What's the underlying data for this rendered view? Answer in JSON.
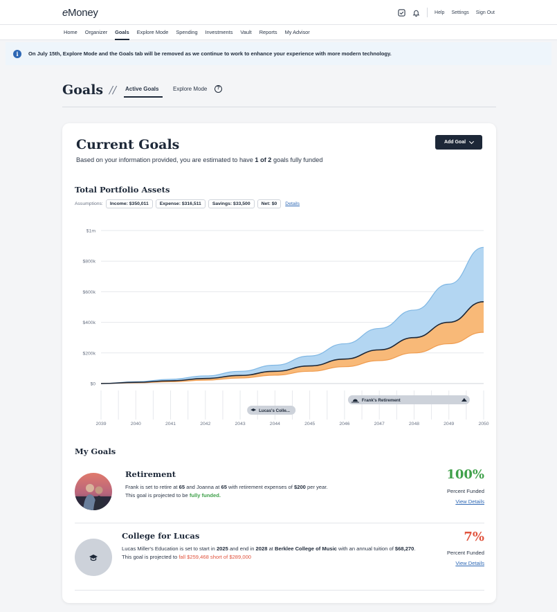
{
  "app": {
    "logo": "eMoney"
  },
  "topbar": {
    "help": "Help",
    "settings": "Settings",
    "signout": "Sign Out"
  },
  "nav": [
    "Home",
    "Organizer",
    "Goals",
    "Explore Mode",
    "Spending",
    "Investments",
    "Vault",
    "Reports",
    "My Advisor"
  ],
  "nav_active": "Goals",
  "banner": {
    "text": "On July 15th, Explore Mode and the Goals tab will be removed as we continue to work to enhance your experience with more modern technology."
  },
  "goals_header": {
    "title": "Goals",
    "separator": "//",
    "tab_active": "Active Goals",
    "tab_explore": "Explore Mode"
  },
  "current_goals": {
    "title": "Current Goals",
    "subtitle_pre": "Based on your information provided, you are estimated to have ",
    "subtitle_bold": "1 of 2",
    "subtitle_post": " goals fully funded",
    "add_goal": "Add Goal"
  },
  "portfolio": {
    "title": "Total Portfolio Assets",
    "assumptions_label": "Assumptions:",
    "income": "Income: $350,011",
    "expense": "Expense: $316,511",
    "savings": "Savings: $33,500",
    "net": "Net: $0",
    "details": "Details"
  },
  "chart_data": {
    "type": "area",
    "y_ticks": [
      "$0",
      "$200k",
      "$400k",
      "$600k",
      "$800k",
      "$1m"
    ],
    "ylim": [
      0,
      1000000
    ],
    "x": [
      "2039",
      "2040",
      "2041",
      "2042",
      "2043",
      "2044",
      "2045",
      "2046",
      "2047",
      "2048",
      "2049",
      "2050"
    ],
    "xlim": [
      2039,
      2050
    ],
    "series": [
      {
        "values": [
          0,
          12000,
          28000,
          50000,
          80000,
          120000,
          180000,
          260000,
          360000,
          480000,
          650000,
          890000
        ],
        "color": "#b3d6f2"
      },
      {
        "values": [
          0,
          8000,
          18000,
          33000,
          53000,
          80000,
          115000,
          160000,
          220000,
          300000,
          400000,
          535000
        ],
        "color": "#1d2838"
      },
      {
        "values": [
          0,
          5000,
          12000,
          22000,
          36000,
          55000,
          80000,
          110000,
          150000,
          200000,
          260000,
          335000
        ],
        "color": "#f8b978"
      }
    ],
    "markers": [
      {
        "label": "Lucas's Colle...",
        "start": 2043.2
      },
      {
        "label": "Frank's Retirement",
        "start": 2046.1,
        "end": 2049.6
      }
    ],
    "grid": true
  },
  "my_goals": {
    "title": "My Goals",
    "items": [
      {
        "name": "Retirement",
        "desc1_parts": [
          "Frank is set to retire at ",
          "65",
          " and Joanna at ",
          "65",
          " with retirement expenses of ",
          "$200",
          " per year."
        ],
        "desc2_pre": "This goal is projected to be ",
        "desc2_status": "fully funded.",
        "pct": "100%",
        "pct_label": "Percent Funded",
        "view": "View Details",
        "pct_color": "#3fa04a"
      },
      {
        "name": "College for Lucas",
        "desc1_parts": [
          "Lucas Miller's Education is set to start in ",
          "2025",
          " and end in ",
          "2028",
          " at ",
          "Berklee College of Music",
          " with an annual tuition of ",
          "$68,270",
          "."
        ],
        "desc2_pre": "This goal is projected to ",
        "desc2_status": "fall $259,468 short of $289,000",
        "pct": "7%",
        "pct_label": "Percent Funded",
        "view": "View Details",
        "pct_color": "#e0533d"
      }
    ]
  }
}
